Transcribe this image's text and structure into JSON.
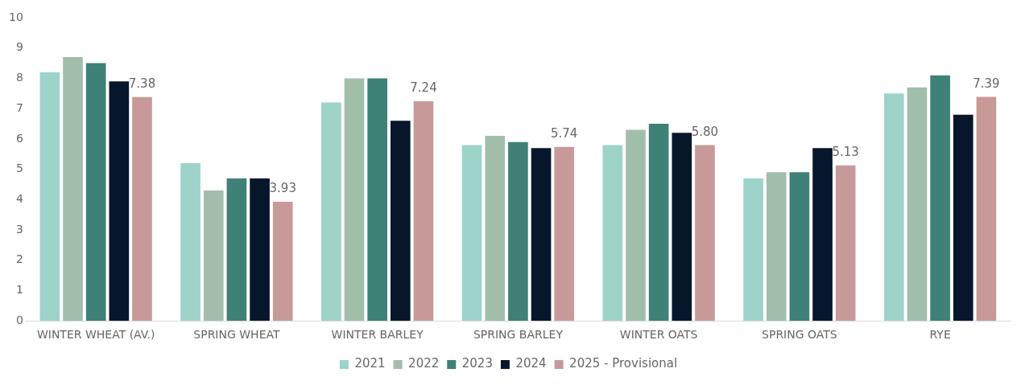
{
  "chart_data": {
    "type": "bar",
    "categories": [
      "WINTER WHEAT (AV.)",
      "SPRING WHEAT",
      "WINTER BARLEY",
      "SPRING BARLEY",
      "WINTER OATS",
      "SPRING OATS",
      "RYE"
    ],
    "series": [
      {
        "name": "2021",
        "color": "#9dd3c8",
        "values": [
          8.2,
          5.2,
          7.2,
          5.8,
          5.8,
          4.7,
          7.5
        ]
      },
      {
        "name": "2022",
        "color": "#a1beab",
        "values": [
          8.7,
          4.3,
          8.0,
          6.1,
          6.3,
          4.9,
          7.7
        ]
      },
      {
        "name": "2023",
        "color": "#3f8177",
        "values": [
          8.5,
          4.7,
          8.0,
          5.9,
          6.5,
          4.9,
          8.1
        ]
      },
      {
        "name": "2024",
        "color": "#07162b",
        "values": [
          7.9,
          4.7,
          6.6,
          5.7,
          6.2,
          5.7,
          6.8
        ]
      },
      {
        "name": "2025 - Provisional",
        "color": "#c89999",
        "values": [
          7.38,
          3.93,
          7.24,
          5.74,
          5.8,
          5.13,
          7.39
        ],
        "value_labels": [
          "7.38",
          "3.93",
          "7.24",
          "5.74",
          "5.80",
          "5.13",
          "7.39"
        ]
      }
    ],
    "ylim": [
      0,
      10
    ],
    "yticks": [
      0,
      1,
      2,
      3,
      4,
      5,
      6,
      7,
      8,
      9,
      10
    ],
    "grid": false,
    "legend": "bottom"
  }
}
